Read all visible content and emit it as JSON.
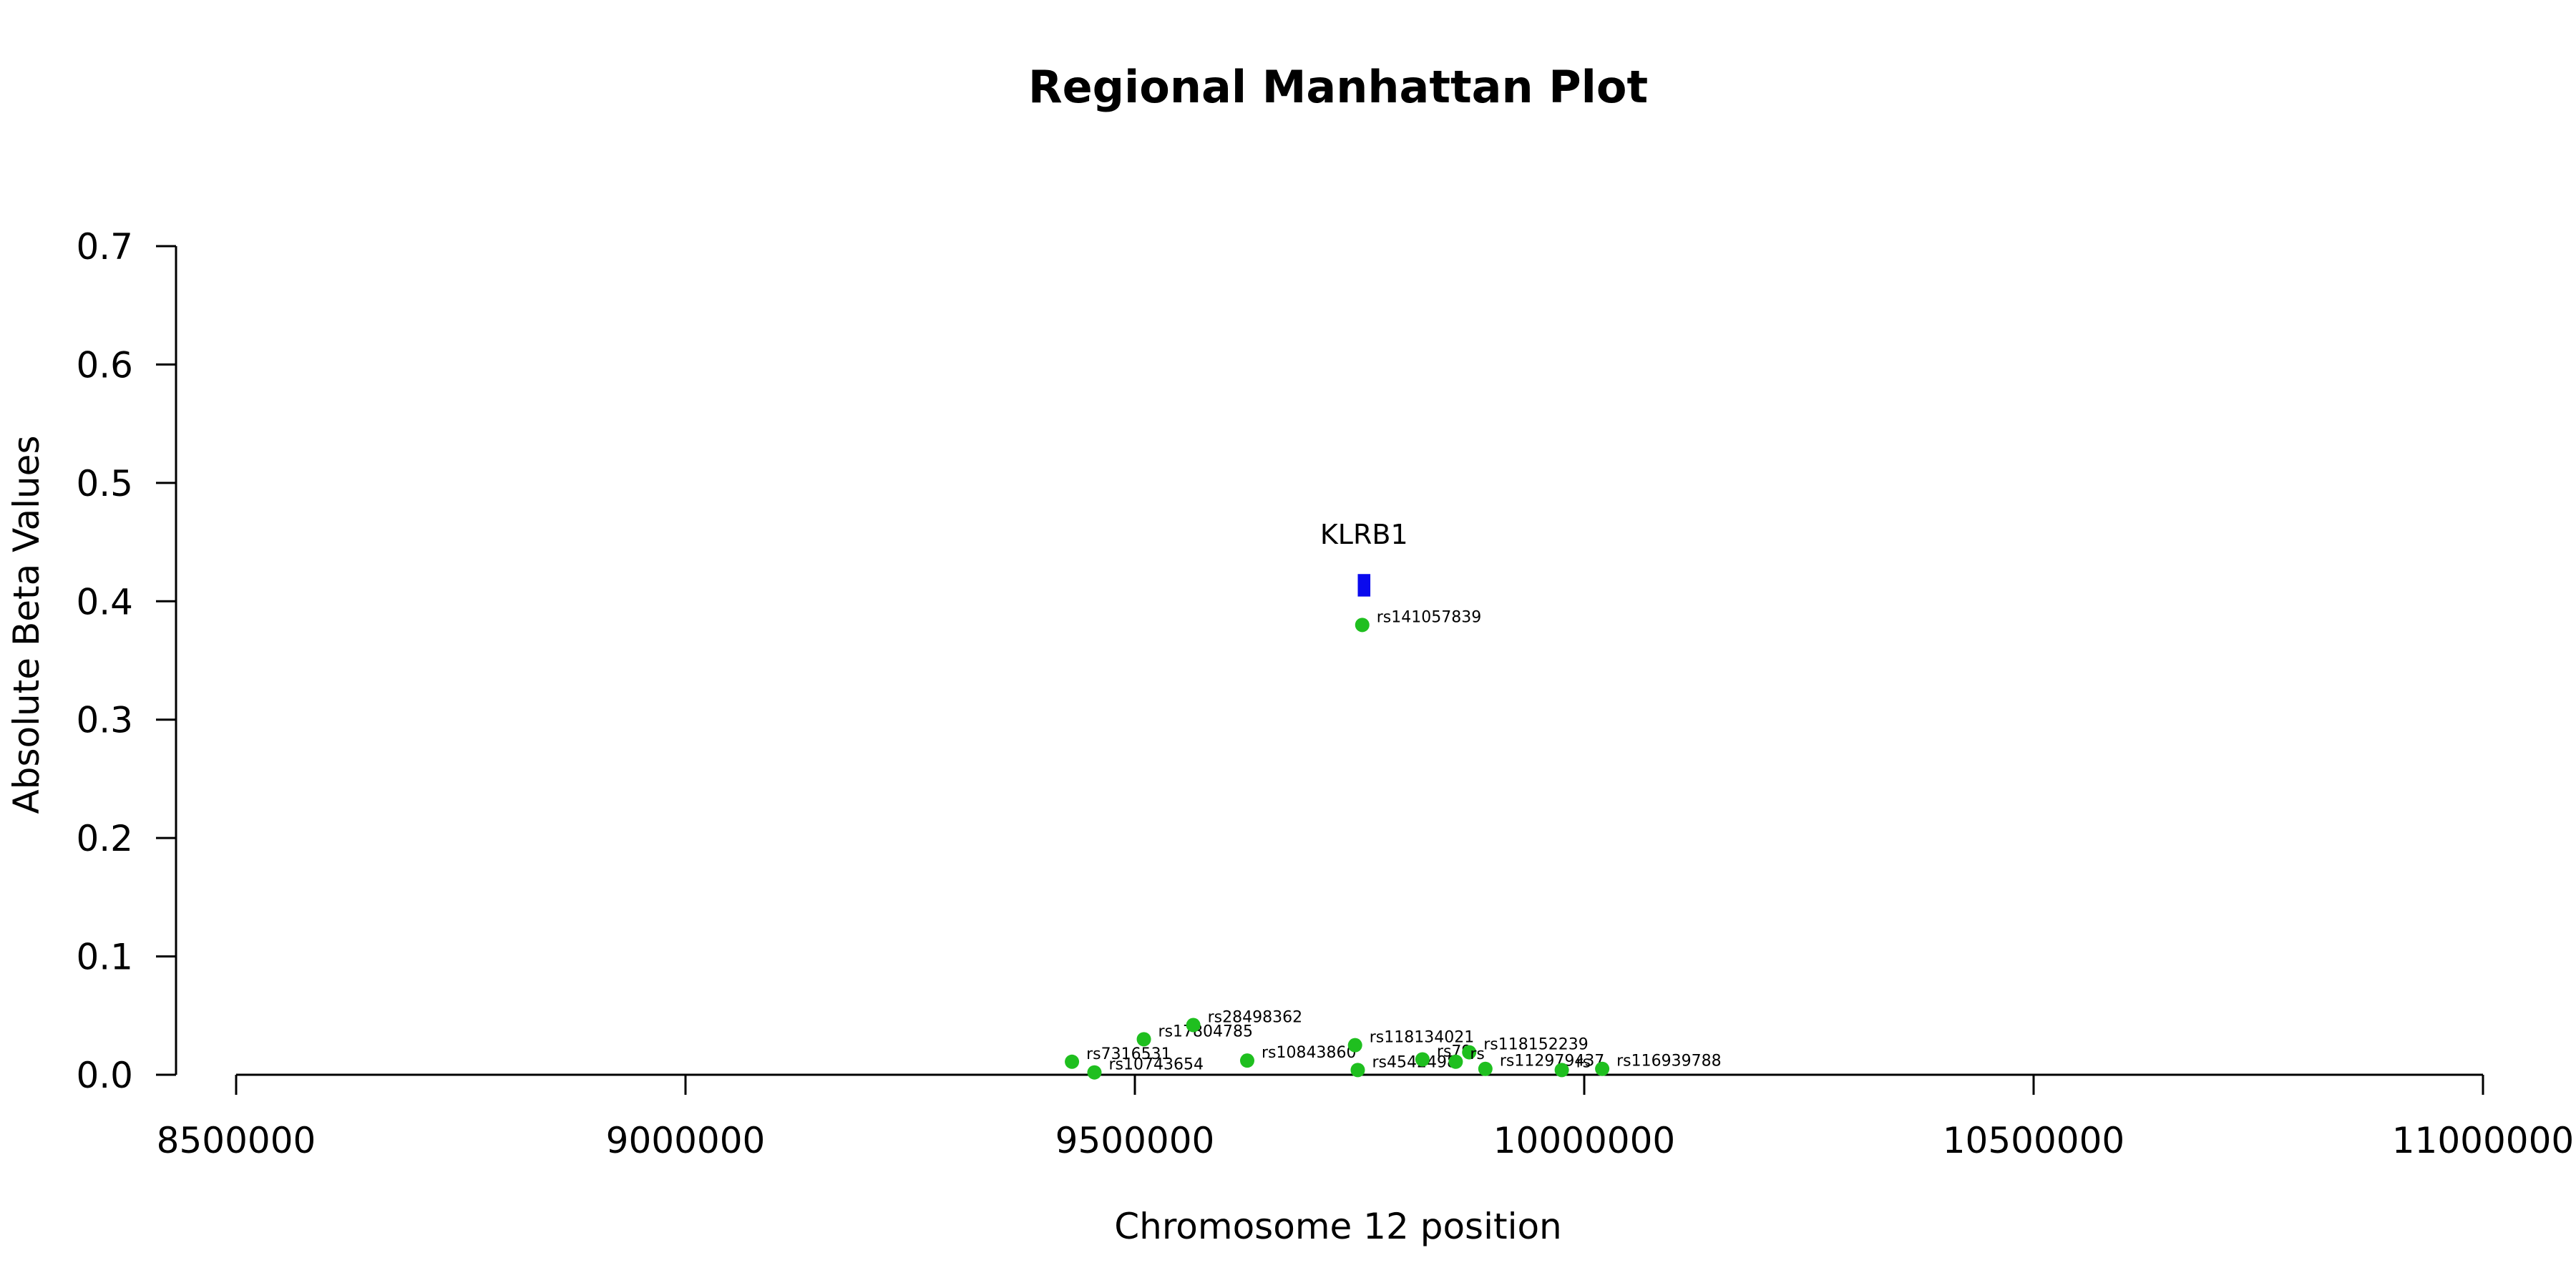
{
  "chart_data": {
    "type": "scatter",
    "title": "Regional Manhattan Plot",
    "xlabel": "Chromosome 12 position",
    "ylabel": "Absolute Beta Values",
    "xlim": [
      8500000,
      11000000
    ],
    "ylim": [
      0,
      0.7
    ],
    "x_ticks": [
      8500000,
      9000000,
      9500000,
      10000000,
      10500000,
      11000000
    ],
    "x_tick_labels": [
      "8500000",
      "9000000",
      "9500000",
      "10000000",
      "10500000",
      "11000000"
    ],
    "y_ticks": [
      0,
      0.1,
      0.2,
      0.3,
      0.4,
      0.5,
      0.6,
      0.7
    ],
    "y_tick_labels": [
      "0.0",
      "0.1",
      "0.2",
      "0.3",
      "0.4",
      "0.5",
      "0.6",
      "0.7"
    ],
    "grid": false,
    "point_color": "#1fbf1f",
    "gene_color": "#0a0aee",
    "points": [
      {
        "label": "rs7316531",
        "x": 9430000,
        "y": 0.011
      },
      {
        "label": "rs10743654",
        "x": 9455000,
        "y": 0.002
      },
      {
        "label": "rs17804785",
        "x": 9510000,
        "y": 0.03
      },
      {
        "label": "rs28498362",
        "x": 9565000,
        "y": 0.042
      },
      {
        "label": "rs10843860",
        "x": 9625000,
        "y": 0.012
      },
      {
        "label": "rs118134021",
        "x": 9745000,
        "y": 0.025
      },
      {
        "label": "rs4542498",
        "x": 9748000,
        "y": 0.004
      },
      {
        "label": "rs141057839",
        "x": 9753000,
        "y": 0.38
      },
      {
        "label": "rs79",
        "x": 9820000,
        "y": 0.013
      },
      {
        "label": "rs118152239",
        "x": 9872000,
        "y": 0.019
      },
      {
        "label": "rs",
        "x": 9857000,
        "y": 0.011
      },
      {
        "label": "rs112979437",
        "x": 9890000,
        "y": 0.005
      },
      {
        "label": "rs",
        "x": 9975000,
        "y": 0.004
      },
      {
        "label": "rs116939788",
        "x": 10020000,
        "y": 0.005
      }
    ],
    "genes": [
      {
        "name": "KLRB1",
        "start": 9748000,
        "end": 9762000,
        "y_low": 0.404,
        "y_high": 0.423
      }
    ]
  }
}
